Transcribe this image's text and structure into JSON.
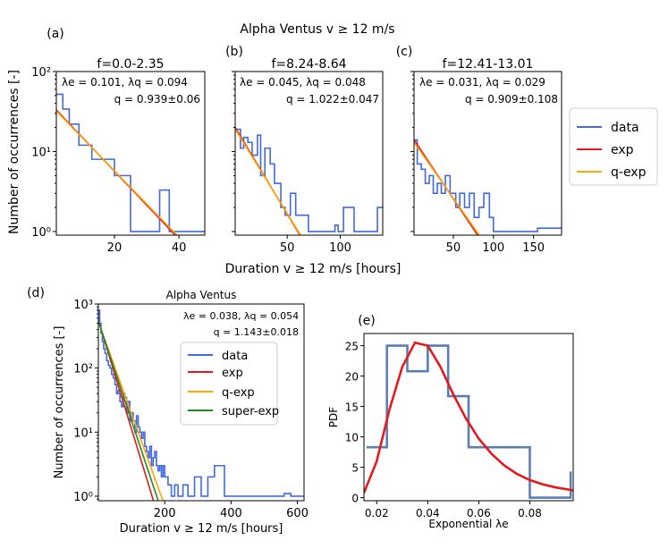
{
  "suptitle": "Alpha Ventus  v ≥ 12 m/s",
  "colors": {
    "data": "#4169e1",
    "exp": "#e41a1c",
    "qexp": "#ffa500",
    "superexp": "#228b22",
    "pdf": "#5b7fb5",
    "pdf_fit": "#e41a1c"
  },
  "legend_top": [
    "data",
    "exp",
    "q-exp"
  ],
  "shared_top_ylabel": "Number of occurrences [-]",
  "shared_top_xlabel": "Duration v ≥ 12 m/s [hours]",
  "chart_data": [
    {
      "type": "line",
      "panel_letter": "(a)",
      "title": "f=0.0-2.35",
      "annot": [
        "λe = 0.101,  λq = 0.094",
        "q = 0.939±0.06"
      ],
      "xlim": [
        2,
        48
      ],
      "ylim": [
        0.9,
        100
      ],
      "yscale": "log",
      "xticks": [
        20,
        40
      ],
      "xtick_labels": [
        "20",
        "40"
      ],
      "yticks": [
        1,
        10,
        100
      ],
      "ytick_labels": [
        "10⁰",
        "10¹",
        "10²"
      ],
      "series": [
        {
          "name": "data",
          "kind": "step",
          "edges": [
            2,
            4,
            6,
            9,
            13,
            17,
            20,
            25,
            29,
            31,
            34,
            37,
            48
          ],
          "values": [
            52,
            34,
            22,
            12,
            8,
            8,
            5,
            1,
            1,
            1,
            3.3,
            1
          ]
        },
        {
          "name": "exp",
          "kind": "curve",
          "x": [
            2,
            43
          ],
          "y": [
            33,
            0.6
          ]
        },
        {
          "name": "q-exp",
          "kind": "curve",
          "x": [
            2,
            40
          ],
          "y": [
            32,
            0.85
          ]
        }
      ]
    },
    {
      "type": "line",
      "panel_letter": "(b)",
      "title": "f=8.24-8.64",
      "annot": [
        "λe = 0.045,  λq = 0.048",
        "q = 1.022±0.047"
      ],
      "xlim": [
        1,
        140
      ],
      "ylim": [
        0.9,
        100
      ],
      "yscale": "log",
      "xticks": [
        50,
        100
      ],
      "xtick_labels": [
        "50",
        "100"
      ],
      "yticks": [
        1,
        10,
        100
      ],
      "ytick_labels": [],
      "series": [
        {
          "name": "data",
          "kind": "step",
          "edges": [
            1,
            6,
            9,
            13,
            17,
            22,
            25,
            29,
            34,
            38,
            44,
            48,
            53,
            58,
            65,
            70,
            95,
            98,
            103,
            108,
            113,
            118,
            123,
            135,
            140
          ],
          "values": [
            19,
            11,
            15,
            13,
            9,
            16,
            5,
            11,
            7,
            4,
            2,
            1.6,
            3,
            1.6,
            1.6,
            1,
            1.2,
            1,
            2,
            2,
            1,
            1,
            1,
            2
          ]
        },
        {
          "name": "exp",
          "kind": "curve",
          "x": [
            1,
            70
          ],
          "y": [
            20,
            0.6
          ]
        },
        {
          "name": "q-exp",
          "kind": "curve",
          "x": [
            1,
            65
          ],
          "y": [
            19,
            0.8
          ]
        }
      ]
    },
    {
      "type": "line",
      "panel_letter": "(c)",
      "title": "f=12.41-13.01",
      "annot": [
        "λe = 0.031,  λq = 0.029",
        "q = 0.909±0.108"
      ],
      "xlim": [
        1,
        185
      ],
      "ylim": [
        0.9,
        100
      ],
      "yscale": "log",
      "xticks": [
        50,
        100,
        150
      ],
      "xtick_labels": [
        "50",
        "100",
        "150"
      ],
      "yticks": [
        1,
        10,
        100
      ],
      "ytick_labels": [],
      "series": [
        {
          "name": "data",
          "kind": "step",
          "edges": [
            1,
            5,
            10,
            15,
            20,
            25,
            30,
            35,
            40,
            46,
            53,
            58,
            64,
            70,
            76,
            82,
            88,
            95,
            100,
            105,
            118,
            125,
            135,
            150,
            155,
            170,
            185
          ],
          "values": [
            14,
            7,
            6,
            4,
            5,
            3,
            4,
            3,
            5,
            3,
            2,
            3,
            2,
            3,
            1.5,
            2,
            3,
            1.5,
            1,
            1,
            1,
            1,
            1,
            1,
            1.1,
            1.1
          ]
        },
        {
          "name": "exp",
          "kind": "curve",
          "x": [
            1,
            92
          ],
          "y": [
            14,
            0.6
          ]
        },
        {
          "name": "q-exp",
          "kind": "curve",
          "x": [
            1,
            88
          ],
          "y": [
            13,
            0.75
          ]
        }
      ]
    },
    {
      "type": "line",
      "panel_letter": "(d)",
      "title": "Alpha Ventus",
      "annot": [
        "λe = 0.038,  λq = 0.054",
        "q = 1.143±0.018"
      ],
      "xlabel": "Duration v ≥ 12 m/s [hours]",
      "ylabel": "Number of occurrences [-]",
      "xlim": [
        0,
        620
      ],
      "ylim": [
        0.85,
        1000
      ],
      "yscale": "log",
      "xticks": [
        200,
        400,
        600
      ],
      "xtick_labels": [
        "200",
        "400",
        "600"
      ],
      "yticks": [
        1,
        10,
        100,
        1000
      ],
      "ytick_labels": [
        "10⁰",
        "10¹",
        "10²",
        "10³"
      ],
      "legend": [
        "data",
        "exp",
        "q-exp",
        "super-exp"
      ],
      "series": [
        {
          "name": "data",
          "kind": "step",
          "edges": [
            0,
            4,
            8,
            12,
            16,
            20,
            25,
            30,
            35,
            40,
            45,
            50,
            55,
            60,
            65,
            70,
            75,
            80,
            85,
            90,
            95,
            100,
            105,
            110,
            115,
            120,
            125,
            130,
            135,
            140,
            145,
            150,
            155,
            160,
            165,
            170,
            175,
            180,
            185,
            190,
            195,
            200,
            210,
            220,
            230,
            240,
            255,
            270,
            290,
            310,
            330,
            350,
            380,
            400,
            420,
            560,
            580,
            620
          ],
          "values": [
            800,
            500,
            350,
            260,
            200,
            170,
            130,
            110,
            100,
            80,
            70,
            55,
            40,
            45,
            30,
            25,
            40,
            35,
            20,
            30,
            15,
            20,
            15,
            10,
            18,
            12,
            10,
            8,
            10,
            6,
            5,
            4,
            6,
            3,
            4,
            5,
            3,
            2.5,
            3,
            2,
            3,
            2,
            1.5,
            1,
            1.5,
            1,
            1.5,
            1,
            2,
            1,
            2,
            3,
            1,
            1,
            1,
            1.1,
            1
          ]
        },
        {
          "name": "exp",
          "kind": "curve",
          "x": [
            0,
            175
          ],
          "y": [
            550,
            0.6
          ]
        },
        {
          "name": "q-exp",
          "kind": "curve",
          "x": [
            0,
            205
          ],
          "y": [
            530,
            0.6
          ]
        },
        {
          "name": "super-exp",
          "kind": "curve",
          "x": [
            0,
            190
          ],
          "y": [
            540,
            0.6
          ]
        }
      ]
    },
    {
      "type": "line",
      "panel_letter": "(e)",
      "xlabel": "Exponential λe",
      "ylabel": "PDF",
      "xlim": [
        0.015,
        0.097
      ],
      "ylim": [
        -0.5,
        27
      ],
      "xticks": [
        0.02,
        0.04,
        0.06,
        0.08
      ],
      "xtick_labels": [
        "0.02",
        "0.04",
        "0.06",
        "0.08"
      ],
      "yticks": [
        0,
        5,
        10,
        15,
        20,
        25
      ],
      "ytick_labels": [
        "0",
        "5",
        "10",
        "15",
        "20",
        "25"
      ],
      "series": [
        {
          "name": "histogram",
          "kind": "step",
          "edges": [
            0.016,
            0.024,
            0.032,
            0.04,
            0.048,
            0.056,
            0.064,
            0.072,
            0.08,
            0.096
          ],
          "values": [
            8.3,
            25,
            20.8,
            25,
            16.7,
            8.3,
            8.3,
            8.3,
            0
          ]
        },
        {
          "name": "fit",
          "kind": "curve",
          "x": [
            0.015,
            0.02,
            0.025,
            0.03,
            0.035,
            0.04,
            0.045,
            0.05,
            0.055,
            0.06,
            0.065,
            0.07,
            0.075,
            0.08,
            0.085,
            0.09,
            0.097
          ],
          "y": [
            0.8,
            6,
            14.5,
            21.5,
            25.5,
            25,
            21.5,
            17,
            13,
            9.7,
            7.2,
            5.3,
            3.9,
            2.9,
            2.2,
            1.7,
            1.2
          ]
        }
      ]
    }
  ]
}
